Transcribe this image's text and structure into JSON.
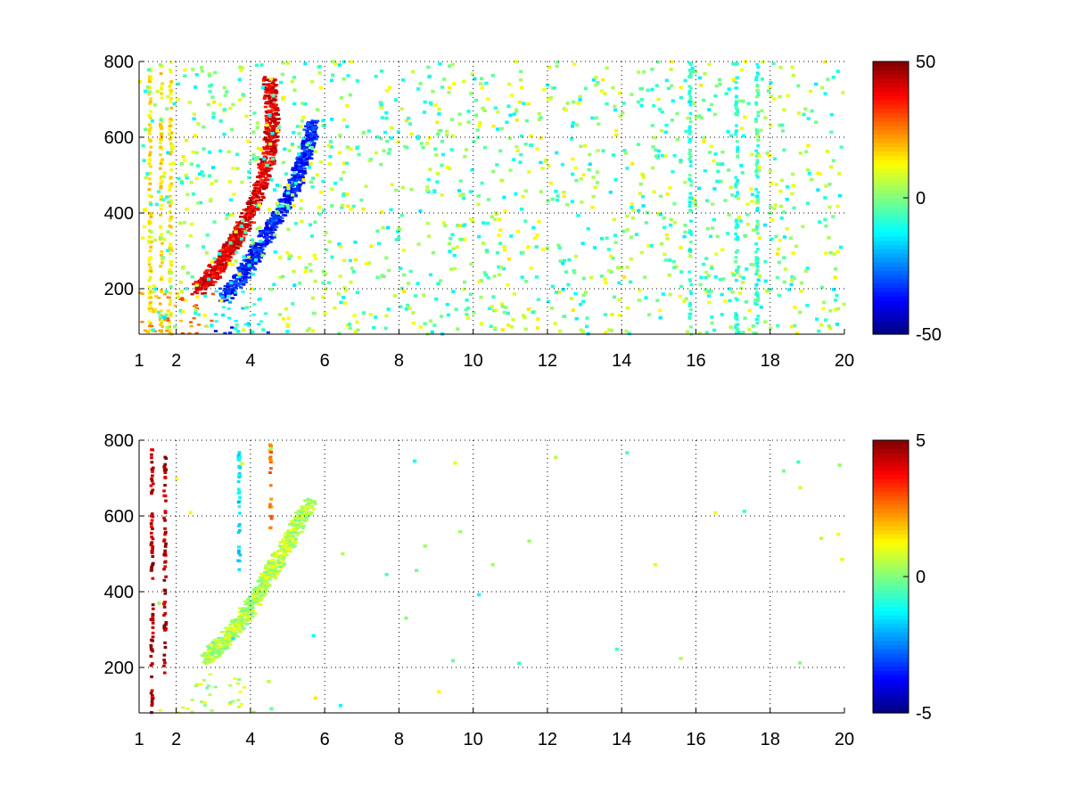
{
  "figure": {
    "background": "#ffffff",
    "colormap": "jet"
  },
  "chart_data": [
    {
      "type": "heatmap",
      "title": "",
      "xlabel": "",
      "ylabel": "",
      "xlim": [
        1,
        20
      ],
      "ylim": [
        80,
        800
      ],
      "x_tick_labels": [
        "1",
        "2",
        "4",
        "6",
        "8",
        "10",
        "12",
        "14",
        "16",
        "18",
        "20"
      ],
      "x_ticks": [
        1,
        2,
        4,
        6,
        8,
        10,
        12,
        14,
        16,
        18,
        20
      ],
      "y_tick_labels": [
        "200",
        "400",
        "600",
        "800"
      ],
      "y_ticks": [
        200,
        400,
        600,
        800
      ],
      "grid": true,
      "colorbar": {
        "min": -50,
        "max": 50,
        "tick_labels": [
          "50",
          "0",
          "-50"
        ],
        "ticks": [
          50,
          0,
          -50
        ]
      },
      "features": [
        {
          "kind": "ridge",
          "value": 40,
          "points": [
            [
              2.6,
              200
            ],
            [
              3.0,
              240
            ],
            [
              3.4,
              300
            ],
            [
              3.8,
              360
            ],
            [
              4.2,
              450
            ],
            [
              4.5,
              550
            ],
            [
              4.6,
              640
            ],
            [
              4.5,
              760
            ]
          ]
        },
        {
          "kind": "ridge",
          "value": -35,
          "points": [
            [
              3.3,
              180
            ],
            [
              3.9,
              250
            ],
            [
              4.3,
              320
            ],
            [
              4.8,
              400
            ],
            [
              5.2,
              480
            ],
            [
              5.5,
              560
            ],
            [
              5.7,
              640
            ]
          ]
        },
        {
          "kind": "band",
          "value": -35,
          "x": [
            3.0,
            4.5
          ],
          "y": [
            80,
            100
          ]
        },
        {
          "kind": "band",
          "value": -15,
          "x": [
            3.0,
            4.5
          ],
          "y": [
            100,
            200
          ]
        },
        {
          "kind": "band",
          "value": 25,
          "x": [
            1.0,
            3.0
          ],
          "y": [
            80,
            200
          ]
        },
        {
          "kind": "column",
          "value": 15,
          "x": 1.3
        },
        {
          "kind": "column",
          "value": 15,
          "x": 1.6
        },
        {
          "kind": "column",
          "value": 15,
          "x": 1.85
        },
        {
          "kind": "column",
          "value": -8,
          "x": 15.85
        },
        {
          "kind": "column",
          "value": -8,
          "x": 17.1
        },
        {
          "kind": "column",
          "value": -8,
          "x": 17.65
        }
      ]
    },
    {
      "type": "heatmap",
      "title": "",
      "xlabel": "",
      "ylabel": "",
      "xlim": [
        1,
        20
      ],
      "ylim": [
        80,
        800
      ],
      "x_tick_labels": [
        "1",
        "2",
        "4",
        "6",
        "8",
        "10",
        "12",
        "14",
        "16",
        "18",
        "20"
      ],
      "x_ticks": [
        1,
        2,
        4,
        6,
        8,
        10,
        12,
        14,
        16,
        18,
        20
      ],
      "y_tick_labels": [
        "200",
        "400",
        "600",
        "800"
      ],
      "y_ticks": [
        200,
        400,
        600,
        800
      ],
      "grid": true,
      "colorbar": {
        "min": -5,
        "max": 5,
        "tick_labels": [
          "5",
          "0",
          "-5"
        ],
        "ticks": [
          5,
          0,
          -5
        ]
      },
      "features": [
        {
          "kind": "ridge",
          "value": 0.5,
          "points": [
            [
              2.8,
              220
            ],
            [
              3.3,
              270
            ],
            [
              3.8,
              330
            ],
            [
              4.3,
              410
            ],
            [
              4.7,
              480
            ],
            [
              5.2,
              560
            ],
            [
              5.6,
              640
            ]
          ]
        },
        {
          "kind": "band",
          "value": 0.5,
          "x": [
            1.5,
            4.2
          ],
          "y": [
            80,
            95
          ]
        },
        {
          "kind": "band",
          "value": 0.5,
          "x": [
            2.3,
            3.9
          ],
          "y": [
            95,
            190
          ]
        },
        {
          "kind": "column",
          "value": 4.5,
          "x": 1.35,
          "y": [
            80,
            790
          ]
        },
        {
          "kind": "column",
          "value": 4.5,
          "x": 1.7,
          "y": [
            180,
            760
          ]
        },
        {
          "kind": "column",
          "value": -1.5,
          "x": 3.7,
          "y": [
            440,
            770
          ]
        },
        {
          "kind": "column",
          "value": 2.5,
          "x": 4.55,
          "y": [
            560,
            790
          ]
        }
      ]
    }
  ]
}
